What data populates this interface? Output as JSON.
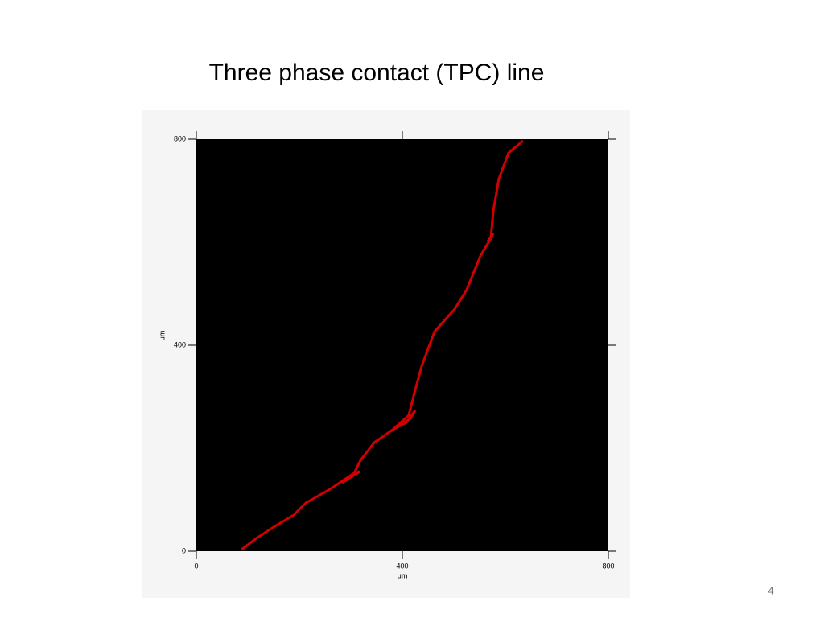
{
  "title": "Three phase contact (TPC) line",
  "figure": {
    "x_axis": {
      "ticks": [
        "0",
        "400",
        "800"
      ],
      "label": "μm"
    },
    "y_axis": {
      "ticks": [
        "0",
        "400",
        "800"
      ],
      "label": "μm"
    }
  },
  "page_number": "4"
}
